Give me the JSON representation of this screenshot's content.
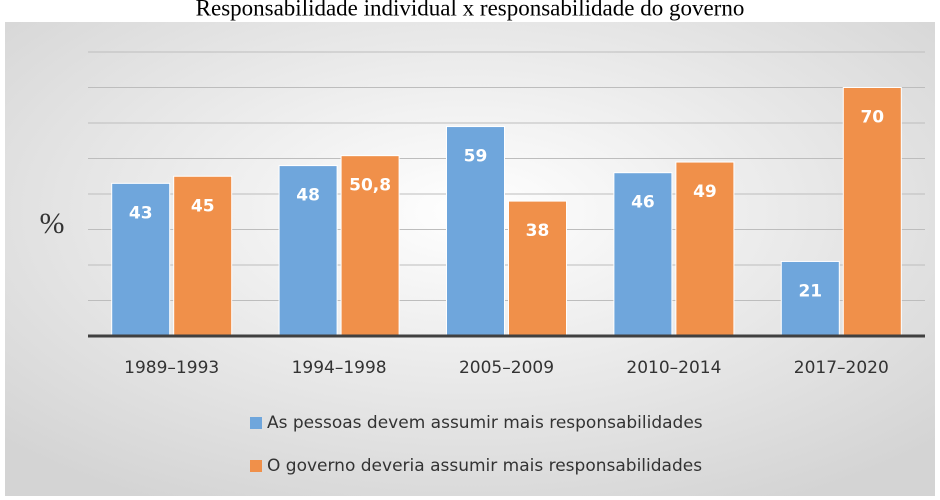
{
  "chart_data": {
    "type": "bar",
    "title": "Responsabilidade individual x responsabilidade do governo",
    "y_label": "%",
    "categories": [
      "1989–1993",
      "1994–1998",
      "2005–2009",
      "2010–2014",
      "2017–2020"
    ],
    "series": [
      {
        "name": "As pessoas devem assumir mais responsabilidades",
        "color": "#6fa6dc",
        "values": [
          43,
          48,
          59,
          46,
          21
        ]
      },
      {
        "name": "O governo deveria assumir mais responsabilidades",
        "color": "#f0904a",
        "values": [
          45,
          50.8,
          38,
          49,
          70
        ],
        "value_labels": [
          "45",
          "50,8",
          "38",
          "49",
          "70"
        ]
      }
    ],
    "ylim": [
      0,
      80
    ],
    "yticks": [
      0,
      10,
      20,
      30,
      40,
      50,
      60,
      70,
      80
    ],
    "grid": true
  }
}
